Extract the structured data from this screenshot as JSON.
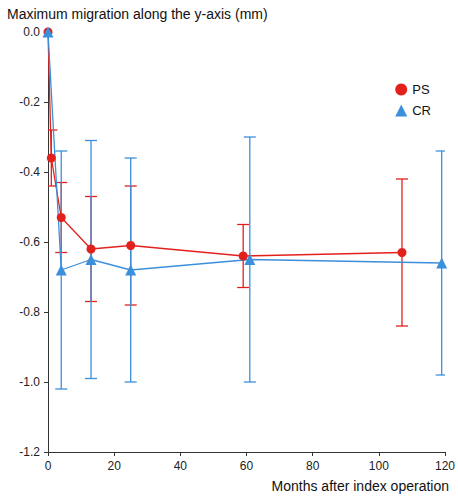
{
  "chart_data": {
    "type": "line",
    "title": "Maximum migration along the y-axis (mm)",
    "x_label": "Months after index operation",
    "xlim": [
      0,
      120
    ],
    "xticks": [
      0,
      20,
      40,
      60,
      80,
      100,
      120
    ],
    "ylim": [
      -1.2,
      0
    ],
    "yticks": [
      {
        "value": -1.2,
        "label": "-1.2"
      },
      {
        "value": -1,
        "label": "-1.0"
      },
      -0.8,
      -0.6,
      -0.4,
      -0.2,
      {
        "value": 0,
        "label": "0.0"
      }
    ],
    "grid": false,
    "legend": "upper right",
    "series": [
      {
        "name": "PS",
        "color": "#e3211c",
        "marker": "circle",
        "x": [
          0,
          1,
          4,
          13,
          25,
          59,
          107
        ],
        "values": [
          0,
          -0.36,
          -0.53,
          -0.62,
          -0.61,
          -0.64,
          -0.63
        ],
        "error_low": [
          null,
          -0.44,
          -0.63,
          -0.77,
          -0.78,
          -0.73,
          -0.84
        ],
        "error_high": [
          null,
          -0.28,
          -0.43,
          -0.47,
          -0.44,
          -0.55,
          -0.42
        ]
      },
      {
        "name": "CR",
        "color": "#3b8fdb",
        "marker": "triangle",
        "x": [
          0,
          4,
          13,
          25,
          61,
          119
        ],
        "values": [
          0,
          -0.68,
          -0.65,
          -0.68,
          -0.65,
          -0.66
        ],
        "error_low": [
          null,
          -1.02,
          -0.99,
          -1.0,
          -1.0,
          -0.98
        ],
        "error_high": [
          null,
          -0.34,
          -0.31,
          -0.36,
          -0.3,
          -0.34
        ]
      }
    ]
  }
}
